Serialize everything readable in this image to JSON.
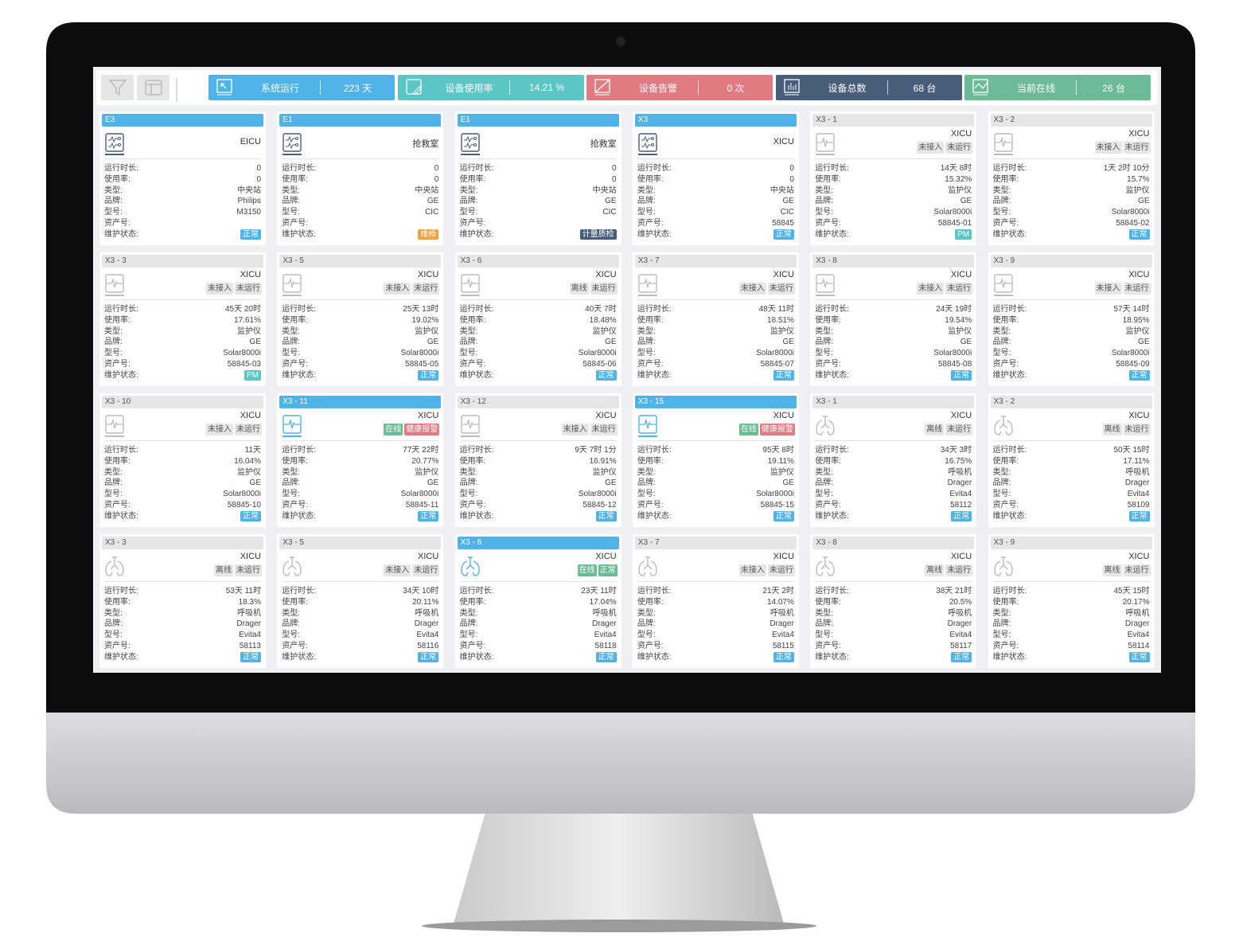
{
  "toolbar": {
    "filter_icon": "filter-icon",
    "layout_icon": "layout-icon"
  },
  "stats": [
    {
      "label": "系统运行",
      "value": "223 天",
      "color": "#4fb3e8",
      "icon": "cursor-monitor-icon"
    },
    {
      "label": "设备使用率",
      "value": "14.21 %",
      "color": "#5cc5c5",
      "icon": "edit-icon"
    },
    {
      "label": "设备告警",
      "value": "0 次",
      "color": "#e07b82",
      "icon": "alarm-slash-icon"
    },
    {
      "label": "设备总数",
      "value": "68 台",
      "color": "#475d7a",
      "icon": "bar-chart-icon"
    },
    {
      "label": "当前在线",
      "value": "26 台",
      "color": "#6cbb96",
      "icon": "trend-icon"
    }
  ],
  "labels": [
    "运行时长:",
    "使用率:",
    "类型:",
    "品牌:",
    "型号:",
    "资产号:",
    "维护状态:"
  ],
  "colors": {
    "正常": "#4fb3e8",
    "维修": "#f0a03c",
    "计量质检": "#475d7a",
    "PM": "#5cc5c5"
  },
  "cards": [
    {
      "title": "E3",
      "active": true,
      "icon": "central",
      "location": "EICU",
      "tags": [],
      "values": [
        "0",
        "0",
        "中央站",
        "Philips",
        "M3150",
        ""
      ],
      "status": "正常"
    },
    {
      "title": "E1",
      "active": true,
      "icon": "central",
      "location": "抢救室",
      "tags": [],
      "values": [
        "0",
        "0",
        "中央站",
        "GE",
        "CIC",
        ""
      ],
      "status": "维修"
    },
    {
      "title": "E1",
      "active": true,
      "icon": "central",
      "location": "抢救室",
      "tags": [],
      "values": [
        "0",
        "0",
        "中央站",
        "GE",
        "CIC",
        ""
      ],
      "status": "计量质检"
    },
    {
      "title": "X3",
      "active": true,
      "icon": "central",
      "location": "XICU",
      "tags": [],
      "values": [
        "0",
        "0",
        "中央站",
        "GE",
        "CIC",
        "58845"
      ],
      "status": "正常"
    },
    {
      "title": "X3 - 1",
      "active": false,
      "icon": "monitor",
      "location": "XICU",
      "tags": [
        "未接入",
        "未运行"
      ],
      "values": [
        "14天 8时",
        "15.32%",
        "监护仪",
        "GE",
        "Solar8000i",
        "58845-01"
      ],
      "status": "PM"
    },
    {
      "title": "X3 - 2",
      "active": false,
      "icon": "monitor",
      "location": "XICU",
      "tags": [
        "未接入",
        "未运行"
      ],
      "values": [
        "1天 2时 10分",
        "15.7%",
        "监护仪",
        "GE",
        "Solar8000i",
        "58845-02"
      ],
      "status": "正常"
    },
    {
      "title": "X3 - 3",
      "active": false,
      "icon": "monitor",
      "location": "XICU",
      "tags": [
        "未接入",
        "未运行"
      ],
      "values": [
        "45天 20时",
        "17.61%",
        "监护仪",
        "GE",
        "Solar8000i",
        "58845-03"
      ],
      "status": "PM"
    },
    {
      "title": "X3 - 5",
      "active": false,
      "icon": "monitor",
      "location": "XICU",
      "tags": [
        "未接入",
        "未运行"
      ],
      "values": [
        "25天 13时",
        "19.02%",
        "监护仪",
        "GE",
        "Solar8000i",
        "58845-05"
      ],
      "status": "正常"
    },
    {
      "title": "X3 - 6",
      "active": false,
      "icon": "monitor",
      "location": "XICU",
      "tags": [
        "离线",
        "未运行"
      ],
      "values": [
        "40天 7时",
        "18.48%",
        "监护仪",
        "GE",
        "Solar8000i",
        "58845-06"
      ],
      "status": "正常"
    },
    {
      "title": "X3 - 7",
      "active": false,
      "icon": "monitor",
      "location": "XICU",
      "tags": [
        "未接入",
        "未运行"
      ],
      "values": [
        "48天 11时",
        "18.51%",
        "监护仪",
        "GE",
        "Solar8000i",
        "58845-07"
      ],
      "status": "正常"
    },
    {
      "title": "X3 - 8",
      "active": false,
      "icon": "monitor",
      "location": "XICU",
      "tags": [
        "未接入",
        "未运行"
      ],
      "values": [
        "24天 19时",
        "19.54%",
        "监护仪",
        "GE",
        "Solar8000i",
        "58845-08"
      ],
      "status": "正常"
    },
    {
      "title": "X3 - 9",
      "active": false,
      "icon": "monitor",
      "location": "XICU",
      "tags": [
        "未接入",
        "未运行"
      ],
      "values": [
        "57天 14时",
        "18.95%",
        "监护仪",
        "GE",
        "Solar8000i",
        "58845-09"
      ],
      "status": "正常"
    },
    {
      "title": "X3 - 10",
      "active": false,
      "icon": "monitor",
      "location": "XICU",
      "tags": [
        "未接入",
        "未运行"
      ],
      "values": [
        "11天",
        "16.04%",
        "监护仪",
        "GE",
        "Solar8000i",
        "58845-10"
      ],
      "status": "正常"
    },
    {
      "title": "X3 - 11",
      "active": true,
      "icon": "monitor",
      "location": "XICU",
      "tags": [
        "在线",
        "健康报警"
      ],
      "values": [
        "77天 22时",
        "20.77%",
        "监护仪",
        "GE",
        "Solar8000i",
        "58845-11"
      ],
      "status": "正常"
    },
    {
      "title": "X3 - 12",
      "active": false,
      "icon": "monitor",
      "location": "XICU",
      "tags": [
        "未接入",
        "未运行"
      ],
      "values": [
        "9天 7时 1分",
        "16.91%",
        "监护仪",
        "GE",
        "Solar8000i",
        "58845-12"
      ],
      "status": "正常"
    },
    {
      "title": "X3 - 15",
      "active": true,
      "icon": "monitor",
      "location": "XICU",
      "tags": [
        "在线",
        "健康报警"
      ],
      "values": [
        "95天 8时",
        "19.11%",
        "监护仪",
        "GE",
        "Solar8000i",
        "58845-15"
      ],
      "status": "正常"
    },
    {
      "title": "X3 - 1",
      "active": false,
      "icon": "ventilator",
      "location": "XICU",
      "tags": [
        "离线",
        "未运行"
      ],
      "values": [
        "34天 3时",
        "16.75%",
        "呼吸机",
        "Drager",
        "Evita4",
        "58112"
      ],
      "status": "正常"
    },
    {
      "title": "X3 - 2",
      "active": false,
      "icon": "ventilator",
      "location": "XICU",
      "tags": [
        "离线",
        "未运行"
      ],
      "values": [
        "50天 15时",
        "17.11%",
        "呼吸机",
        "Drager",
        "Evita4",
        "58109"
      ],
      "status": "正常"
    },
    {
      "title": "X3 - 3",
      "active": false,
      "icon": "ventilator",
      "location": "XICU",
      "tags": [
        "离线",
        "未运行"
      ],
      "values": [
        "53天 11时",
        "18.3%",
        "呼吸机",
        "Drager",
        "Evita4",
        "58113"
      ],
      "status": "正常"
    },
    {
      "title": "X3 - 5",
      "active": false,
      "icon": "ventilator",
      "location": "XICU",
      "tags": [
        "未接入",
        "未运行"
      ],
      "values": [
        "34天 10时",
        "20.11%",
        "呼吸机",
        "Drager",
        "Evita4",
        "58116"
      ],
      "status": "正常"
    },
    {
      "title": "X3 - 6",
      "active": true,
      "icon": "ventilator",
      "location": "XICU",
      "tags": [
        "在线",
        "正常"
      ],
      "values": [
        "23天 11时",
        "17.04%",
        "呼吸机",
        "Drager",
        "Evita4",
        "58118"
      ],
      "status": "正常"
    },
    {
      "title": "X3 - 7",
      "active": false,
      "icon": "ventilator",
      "location": "XICU",
      "tags": [
        "未接入",
        "未运行"
      ],
      "values": [
        "21天 2时",
        "14.07%",
        "呼吸机",
        "Drager",
        "Evita4",
        "58115"
      ],
      "status": "正常"
    },
    {
      "title": "X3 - 8",
      "active": false,
      "icon": "ventilator",
      "location": "XICU",
      "tags": [
        "离线",
        "未运行"
      ],
      "values": [
        "38天 21时",
        "20.5%",
        "呼吸机",
        "Drager",
        "Evita4",
        "58117"
      ],
      "status": "正常"
    },
    {
      "title": "X3 - 9",
      "active": false,
      "icon": "ventilator",
      "location": "XICU",
      "tags": [
        "离线",
        "未运行"
      ],
      "values": [
        "45天 15时",
        "20.17%",
        "呼吸机",
        "Drager",
        "Evita4",
        "58114"
      ],
      "status": "正常"
    }
  ]
}
